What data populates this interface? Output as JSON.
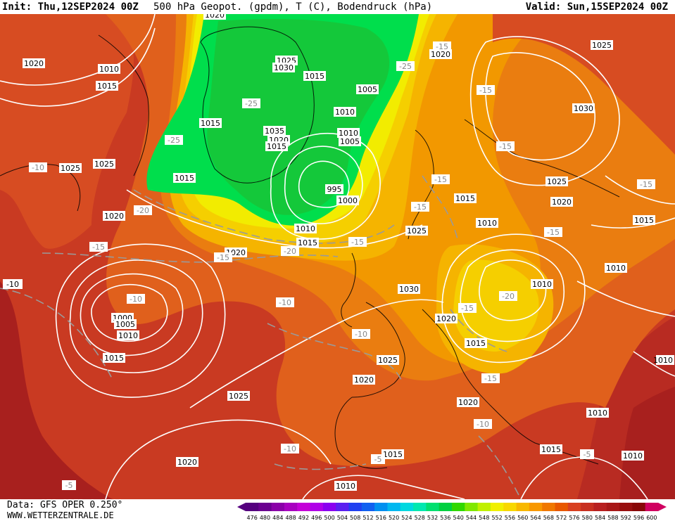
{
  "header": {
    "init": "Init: Thu,12SEP2024 00Z",
    "title": "500 hPa Geopot. (gpdm), T (C), Bodendruck (hPa)",
    "valid": "Valid: Sun,15SEP2024 00Z"
  },
  "footer": {
    "data_source": "Data: GFS OPER 0.250°",
    "website": "WWW.WETTERZENTRALE.DE"
  },
  "legend": {
    "values": [
      "476",
      "480",
      "484",
      "488",
      "492",
      "496",
      "500",
      "504",
      "508",
      "512",
      "516",
      "520",
      "524",
      "528",
      "532",
      "536",
      "540",
      "544",
      "548",
      "552",
      "556",
      "560",
      "564",
      "568",
      "572",
      "576",
      "580",
      "584",
      "588",
      "592",
      "596",
      "600"
    ],
    "colors": [
      "#55007f",
      "#6a0090",
      "#8a00a8",
      "#a800c0",
      "#c400d8",
      "#b000e8",
      "#8a00f0",
      "#5a20f0",
      "#2040f0",
      "#1060f0",
      "#0090f0",
      "#00b8f0",
      "#00d8e0",
      "#00e8b0",
      "#00e070",
      "#00d040",
      "#30d800",
      "#80e800",
      "#c0f000",
      "#f0f000",
      "#f8d800",
      "#f8b800",
      "#f89800",
      "#f07800",
      "#e85800",
      "#d84020",
      "#c83020",
      "#b82020",
      "#a81818",
      "#981010",
      "#880808",
      "#d00060"
    ]
  },
  "map": {
    "colors": {
      "c_552": "#f2ec00",
      "c_556": "#f5cf00",
      "c_560": "#f5b400",
      "c_564": "#f29800",
      "c_568": "#ea7d10",
      "c_572": "#e0601c",
      "c_576": "#d74c22",
      "c_580": "#c93a22",
      "c_584": "#b82b22",
      "c_588": "#a8201e",
      "green_outer": "#00de4c",
      "green_inner": "#14c83a",
      "isobar": "#ffffff",
      "coast": "#000000"
    },
    "pressure_labels": [
      "1020",
      "1010",
      "1015",
      "1020",
      "1025",
      "1030",
      "1015",
      "1005",
      "1010",
      "1035",
      "1020",
      "1015",
      "1010",
      "1005",
      "995",
      "1000",
      "1010",
      "1015",
      "1020",
      "1025",
      "1015",
      "1025",
      "1020",
      "1000",
      "1005",
      "1010",
      "1015",
      "1020",
      "1025",
      "1030",
      "1020",
      "1015",
      "1025",
      "1020",
      "1020",
      "1025",
      "1030",
      "1025",
      "1020",
      "1015",
      "1010",
      "1010",
      "1010",
      "1015",
      "1020",
      "1010",
      "1015",
      "1020",
      "1010",
      "1015",
      "1010",
      "1010",
      "1015"
    ],
    "temp_labels": [
      "-25",
      "-25",
      "-15",
      "-15",
      "-10",
      "-20",
      "-25",
      "-15",
      "-15",
      "-20",
      "-15",
      "-10",
      "-15",
      "-10",
      "-20",
      "-15",
      "-15",
      "-15",
      "-15",
      "-10",
      "-15",
      "-10",
      "-15",
      "-10",
      "-10",
      "-10",
      "-5",
      "-5",
      "-10",
      "-20"
    ]
  }
}
